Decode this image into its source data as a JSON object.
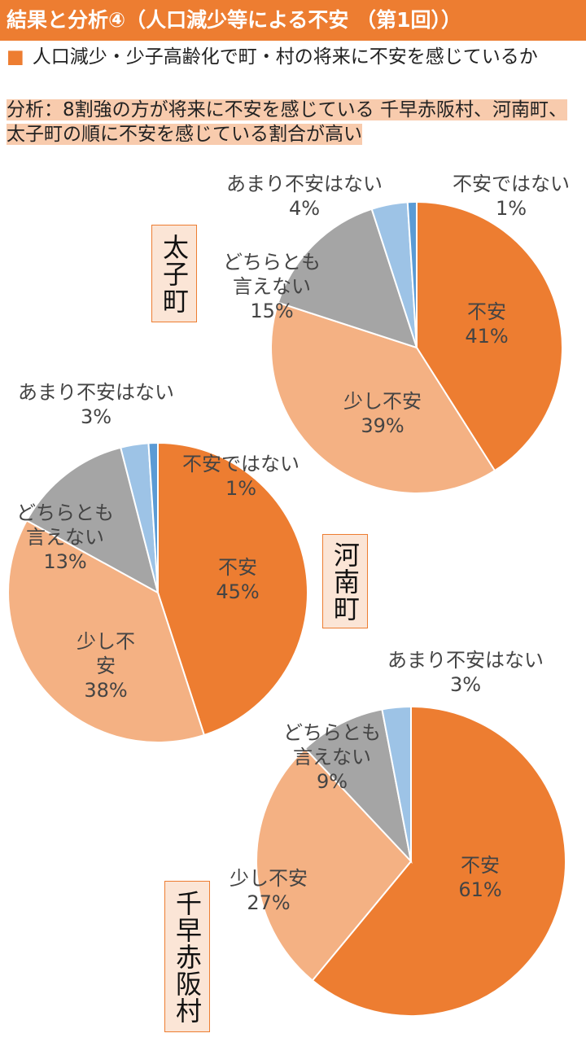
{
  "header": {
    "title": "結果と分析④（人口減少等による不安 （第1回））"
  },
  "question": {
    "bullet": "■",
    "text": "人口減少・少子高齢化で町・村の将来に不安を感じているか"
  },
  "analysis": {
    "text": "分析：8割強の方が将来に不安を感じている 千早赤阪村、河南町、太子町の順に不安を感じている割合が高い"
  },
  "colors": {
    "不安": "#ed7d31",
    "少し不安": "#f4b183",
    "どちらとも言えない": "#a5a5a5",
    "あまり不安はない": "#9dc3e6",
    "不安ではない": "#5b9bd5"
  },
  "chart_data": [
    {
      "type": "pie",
      "title": "太子町",
      "categories": [
        "不安",
        "少し不安",
        "どちらとも言えない",
        "あまり不安はない",
        "不安ではない"
      ],
      "values": [
        41,
        39,
        15,
        4,
        1
      ],
      "labels": [
        {
          "lines": [
            "不安",
            "41%"
          ]
        },
        {
          "lines": [
            "少し不安",
            "39%"
          ]
        },
        {
          "lines": [
            "どちらとも",
            "言えない",
            "15%"
          ]
        },
        {
          "lines": [
            "あまり不安はない",
            "4%"
          ]
        },
        {
          "lines": [
            "不安ではない",
            "1%"
          ]
        }
      ]
    },
    {
      "type": "pie",
      "title": "河南町",
      "categories": [
        "不安",
        "少し不安",
        "どちらとも言えない",
        "あまり不安はない",
        "不安ではない"
      ],
      "values": [
        45,
        38,
        13,
        3,
        1
      ],
      "labels": [
        {
          "lines": [
            "不安",
            "45%"
          ]
        },
        {
          "lines": [
            "少し不",
            "安",
            "38%"
          ]
        },
        {
          "lines": [
            "どちらとも",
            "言えない",
            "13%"
          ]
        },
        {
          "lines": [
            "あまり不安はない",
            "3%"
          ]
        },
        {
          "lines": [
            "不安ではない",
            "1%"
          ]
        }
      ]
    },
    {
      "type": "pie",
      "title": "千早赤阪村",
      "categories": [
        "不安",
        "少し不安",
        "どちらとも言えない",
        "あまり不安はない"
      ],
      "values": [
        61,
        27,
        9,
        3
      ],
      "labels": [
        {
          "lines": [
            "不安",
            "61%"
          ]
        },
        {
          "lines": [
            "少し不安",
            "27%"
          ]
        },
        {
          "lines": [
            "どちらとも",
            "言えない",
            "9%"
          ]
        },
        {
          "lines": [
            "あまり不安はない",
            "3%"
          ]
        }
      ]
    }
  ]
}
